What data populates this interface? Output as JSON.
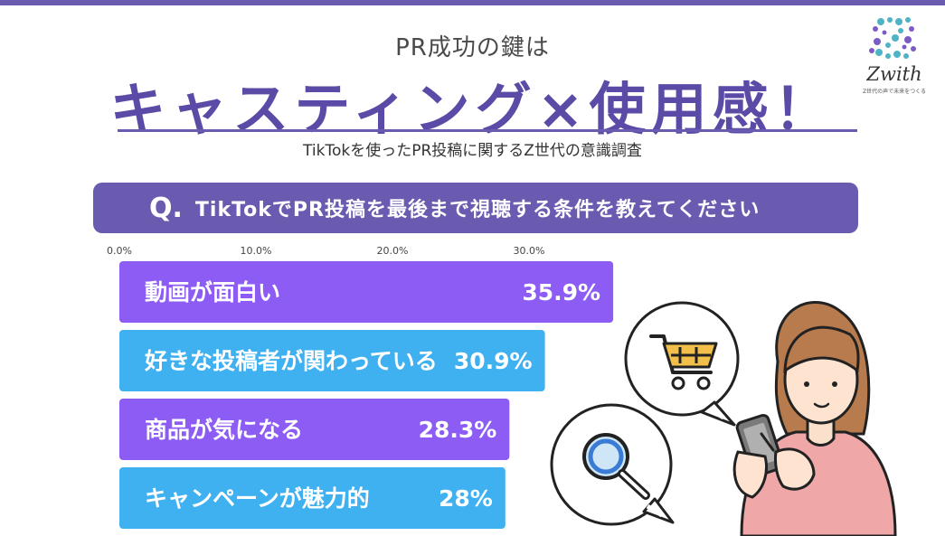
{
  "header": {
    "subtitle": "PR成功の鍵は",
    "title": "キャスティング×使用感！",
    "caption": "TikTokを使ったPR投稿に関するZ世代の意識調査"
  },
  "logo": {
    "name": "Zwith",
    "tagline": "Z世代の声で未来をつくる",
    "icon": "z-dot-cluster-logo"
  },
  "question": {
    "mark": "Q.",
    "text": "TikTokでPR投稿を最後まで視聴する条件を教えてください"
  },
  "chart_data": {
    "type": "bar",
    "orientation": "horizontal",
    "axis_ticks": [
      "0.0%",
      "10.0%",
      "20.0%",
      "30.0%"
    ],
    "xlim": [
      0,
      36.5
    ],
    "categories": [
      "動画が面白い",
      "好きな投稿者が関わっている",
      "商品が気になる",
      "キャンペーンが魅力的"
    ],
    "value_labels": [
      "35.9%",
      "30.9%",
      "28.3%",
      "28%"
    ],
    "values": [
      35.9,
      30.9,
      28.3,
      28.0
    ],
    "bar_colors": [
      "#8c5cf5",
      "#3fb0f0",
      "#8c5cf5",
      "#3fb0f0"
    ],
    "grid": false,
    "legend": "none"
  },
  "colors": {
    "accent": "#6b5bb0",
    "title": "#5b4aa6",
    "bar_purple": "#8c5cf5",
    "bar_blue": "#3fb0f0"
  },
  "illustration": {
    "person": "woman-with-smartphone-icon",
    "bubble_left": "magnifier-icon",
    "bubble_right": "shopping-cart-icon"
  }
}
